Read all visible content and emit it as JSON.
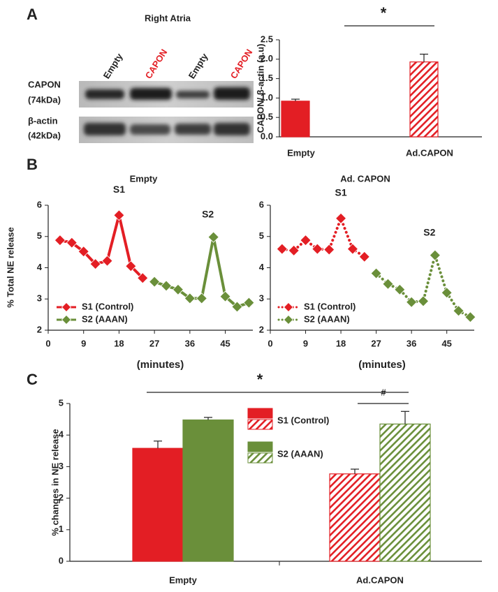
{
  "figure": {
    "panel_labels": [
      "A",
      "B",
      "C"
    ]
  },
  "blot": {
    "title": "Right Atria",
    "lanes": [
      "Empty",
      "CAPON",
      "Empty",
      "CAPON"
    ],
    "rows": [
      {
        "label": "CAPON",
        "sublabel": "(74kDa)"
      },
      {
        "label": "β-actin",
        "sublabel": "(42kDa)"
      }
    ]
  },
  "chart_data": [
    {
      "type": "bar",
      "ylabel": "CAPON/ β-actin (a.u)",
      "categories": [
        "Empty",
        "Ad.CAPON"
      ],
      "values": [
        0.92,
        1.93
      ],
      "errors": [
        0.05,
        0.2
      ],
      "color": "#e31e24",
      "hatched": [
        false,
        true
      ],
      "ylim": [
        0,
        2.5
      ],
      "yticks": [
        {
          "value": 0,
          "label": "0.0"
        },
        0.5,
        {
          "value": 1,
          "label": "1.0"
        },
        1.5,
        {
          "value": 2,
          "label": "2.0"
        },
        2.5
      ],
      "significance": [
        "*"
      ]
    },
    {
      "type": "line",
      "title": "Empty",
      "ylabel": "% Total NE release",
      "xlabel": "(minutes)",
      "dash": false,
      "x": [
        3,
        6,
        9,
        12,
        15,
        18,
        21,
        24,
        27,
        30,
        33,
        36,
        39,
        42,
        45,
        48,
        51
      ],
      "series": [
        {
          "name": "S1 (Control)",
          "color": "#e31e24",
          "values": [
            4.88,
            4.8,
            4.52,
            4.12,
            4.22,
            5.68,
            4.05,
            3.67,
            null,
            null,
            null,
            null,
            null,
            null,
            null,
            null,
            null
          ]
        },
        {
          "name": "S2 (AAAN)",
          "color": "#6a8f3a",
          "values": [
            null,
            null,
            null,
            null,
            null,
            null,
            null,
            null,
            3.55,
            3.42,
            3.3,
            3.02,
            3.02,
            4.98,
            3.08,
            2.75,
            2.88
          ]
        }
      ],
      "annotations": [
        "S1",
        "S2"
      ],
      "xlim": [
        0,
        52
      ],
      "xticks": [
        0,
        9,
        18,
        27,
        36,
        45
      ],
      "ylim": [
        2,
        6
      ],
      "yticks": [
        2,
        3,
        4,
        5,
        6
      ]
    },
    {
      "type": "line",
      "title": "Ad. CAPON",
      "xlabel": "(minutes)",
      "dash": true,
      "x": [
        3,
        6,
        9,
        12,
        15,
        18,
        21,
        24,
        27,
        30,
        33,
        36,
        39,
        42,
        45,
        48,
        51
      ],
      "series": [
        {
          "name": "S1 (Control)",
          "color": "#e31e24",
          "values": [
            4.6,
            4.55,
            4.88,
            4.6,
            4.58,
            5.58,
            4.6,
            4.35,
            null,
            null,
            null,
            null,
            null,
            null,
            null,
            null,
            null
          ]
        },
        {
          "name": "S2 (AAAN)",
          "color": "#6a8f3a",
          "values": [
            null,
            null,
            null,
            null,
            null,
            null,
            null,
            null,
            3.82,
            3.48,
            3.3,
            2.9,
            2.93,
            4.4,
            3.2,
            2.62,
            2.42
          ]
        }
      ],
      "annotations": [
        "S1",
        "S2"
      ],
      "xlim": [
        0,
        52
      ],
      "xticks": [
        0,
        9,
        18,
        27,
        36,
        45
      ],
      "ylim": [
        2,
        6
      ],
      "yticks": [
        2,
        3,
        4,
        5,
        6
      ]
    },
    {
      "type": "bar",
      "ylabel": "% changes in NE release",
      "categories": [
        "Empty",
        "Ad.CAPON"
      ],
      "hatched": [
        false,
        true
      ],
      "series": [
        {
          "name": "S1 (Control)",
          "color": "#e31e24",
          "values": [
            3.58,
            2.77
          ],
          "errors": [
            0.23,
            0.15
          ]
        },
        {
          "name": "S2 (AAAN)",
          "color": "#6a8f3a",
          "values": [
            4.48,
            4.35
          ],
          "errors": [
            0.08,
            0.4
          ]
        }
      ],
      "ylim": [
        0,
        5
      ],
      "yticks": [
        0,
        1,
        2,
        3,
        4,
        5
      ],
      "significance": [
        "*",
        "#"
      ]
    }
  ]
}
